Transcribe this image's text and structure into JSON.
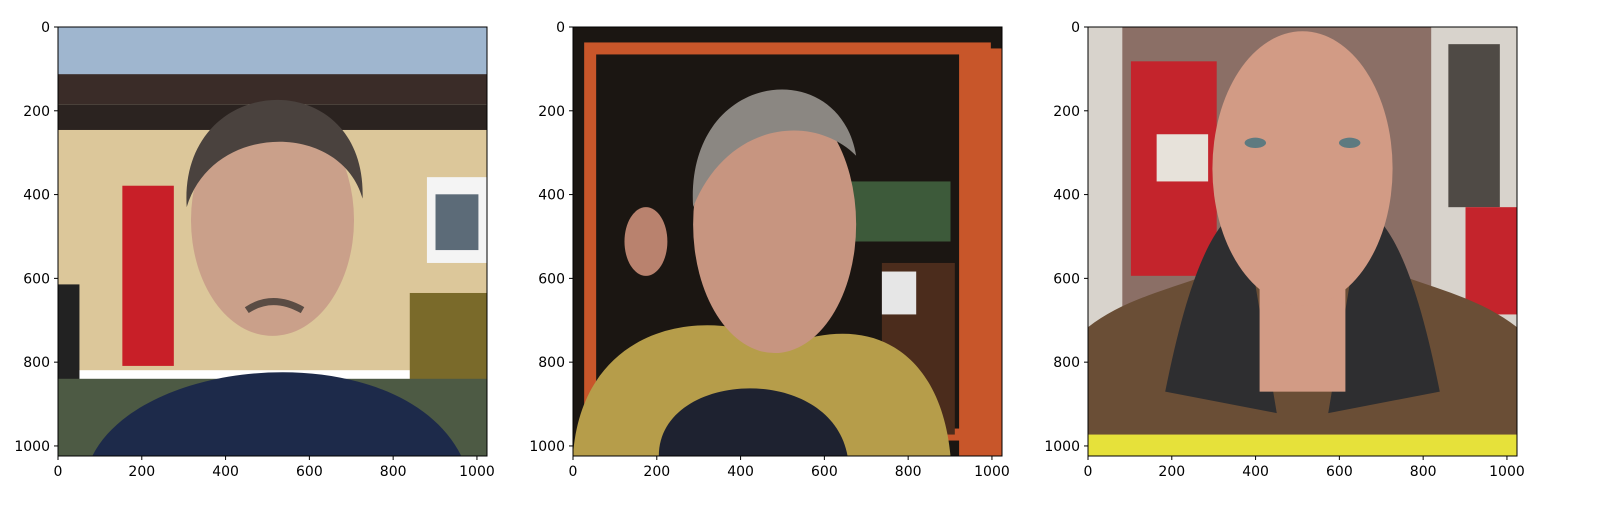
{
  "figure": {
    "background": "#ffffff",
    "axis_color": "#000000",
    "panels": [
      {
        "image": "photo-portrait-gray-hair-navy-jacket",
        "xticks": [
          "0",
          "200",
          "400",
          "600",
          "800",
          "1000"
        ],
        "yticks": [
          "0",
          "200",
          "400",
          "600",
          "800",
          "1000"
        ],
        "xlim": [
          0,
          1024
        ],
        "ylim": [
          1024,
          0
        ],
        "palette": {
          "sky": "#9fb6cf",
          "wall": "#dcc79a",
          "door": "#c81f28",
          "jacket": "#1d2a4a",
          "skin": "#caa08a",
          "hair": "#4a423e"
        }
      },
      {
        "image": "photo-portrait-gray-hair-yellow-jacket-doorway",
        "xticks": [
          "0",
          "200",
          "400",
          "600",
          "800",
          "1000"
        ],
        "yticks": [
          "0",
          "200",
          "400",
          "600",
          "800",
          "1000"
        ],
        "xlim": [
          0,
          1024
        ],
        "ylim": [
          1024,
          0
        ],
        "palette": {
          "bg": "#1b1612",
          "frame": "#c8562a",
          "jacket": "#b69d4a",
          "hood": "#1e2230",
          "skin": "#c79580",
          "hair": "#8b8782"
        }
      },
      {
        "image": "photo-portrait-bald-turnout-coat",
        "xticks": [
          "0",
          "200",
          "400",
          "600",
          "800",
          "1000"
        ],
        "yticks": [
          "0",
          "200",
          "400",
          "600",
          "800",
          "1000"
        ],
        "xlim": [
          0,
          1024
        ],
        "ylim": [
          1024,
          0
        ],
        "palette": {
          "bg": "#8b6f66",
          "wall": "#d8d3cc",
          "door": "#c4242c",
          "coat": "#6a4e36",
          "collar": "#2e2e30",
          "stripe": "#e6e13a",
          "skin": "#d29b85"
        }
      }
    ]
  }
}
